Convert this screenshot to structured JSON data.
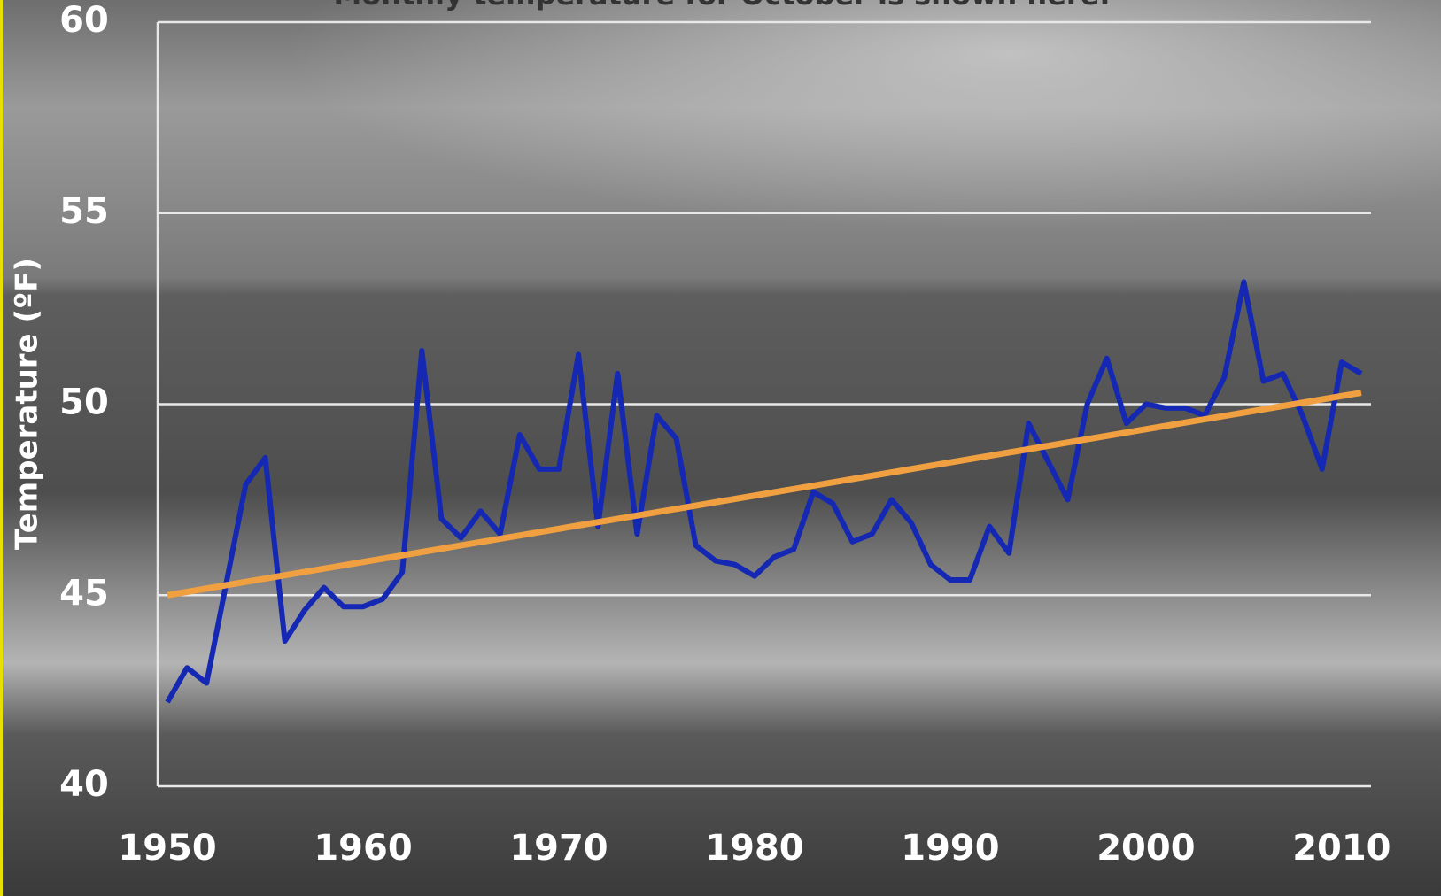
{
  "chart_data": {
    "type": "line",
    "title": "Monthly temperature for October is shown here.",
    "y_label": "Temperature (ºF)",
    "x": [
      1950,
      1951,
      1952,
      1953,
      1954,
      1955,
      1956,
      1957,
      1958,
      1959,
      1960,
      1961,
      1962,
      1963,
      1964,
      1965,
      1966,
      1967,
      1968,
      1969,
      1970,
      1971,
      1972,
      1973,
      1974,
      1975,
      1976,
      1977,
      1978,
      1979,
      1980,
      1981,
      1982,
      1983,
      1984,
      1985,
      1986,
      1987,
      1988,
      1989,
      1990,
      1991,
      1992,
      1993,
      1994,
      1995,
      1996,
      1997,
      1998,
      1999,
      2000,
      2001,
      2002,
      2003,
      2004,
      2005,
      2006,
      2007,
      2008,
      2009,
      2010,
      2011
    ],
    "series": [
      {
        "color": "#1428b4",
        "values": [
          42.2,
          43.1,
          42.7,
          45.3,
          47.9,
          48.6,
          43.8,
          44.6,
          45.2,
          44.7,
          44.7,
          44.9,
          45.6,
          51.4,
          47.0,
          46.5,
          47.2,
          46.6,
          49.2,
          48.3,
          48.3,
          51.3,
          46.8,
          50.8,
          46.6,
          49.7,
          49.1,
          46.3,
          45.9,
          45.8,
          45.5,
          46.0,
          46.2,
          47.7,
          47.4,
          46.4,
          46.6,
          47.5,
          46.9,
          45.8,
          45.4,
          45.4,
          46.8,
          46.1,
          49.5,
          48.5,
          47.5,
          50.0,
          51.2,
          49.5,
          50.0,
          49.9,
          49.9,
          49.7,
          50.7,
          53.2,
          50.6,
          50.8,
          49.7,
          48.3,
          51.1,
          50.8
        ]
      }
    ],
    "trend": {
      "color": "#f0a040",
      "x": [
        1950,
        2011
      ],
      "values": [
        45.0,
        50.3
      ]
    },
    "xlim": [
      1949.5,
      2011.5
    ],
    "xticks": [
      1950,
      1960,
      1970,
      1980,
      1990,
      2000,
      2010
    ],
    "ylim": [
      40,
      60
    ],
    "yticks": [
      40,
      45,
      50,
      55,
      60
    ],
    "grid": true
  }
}
